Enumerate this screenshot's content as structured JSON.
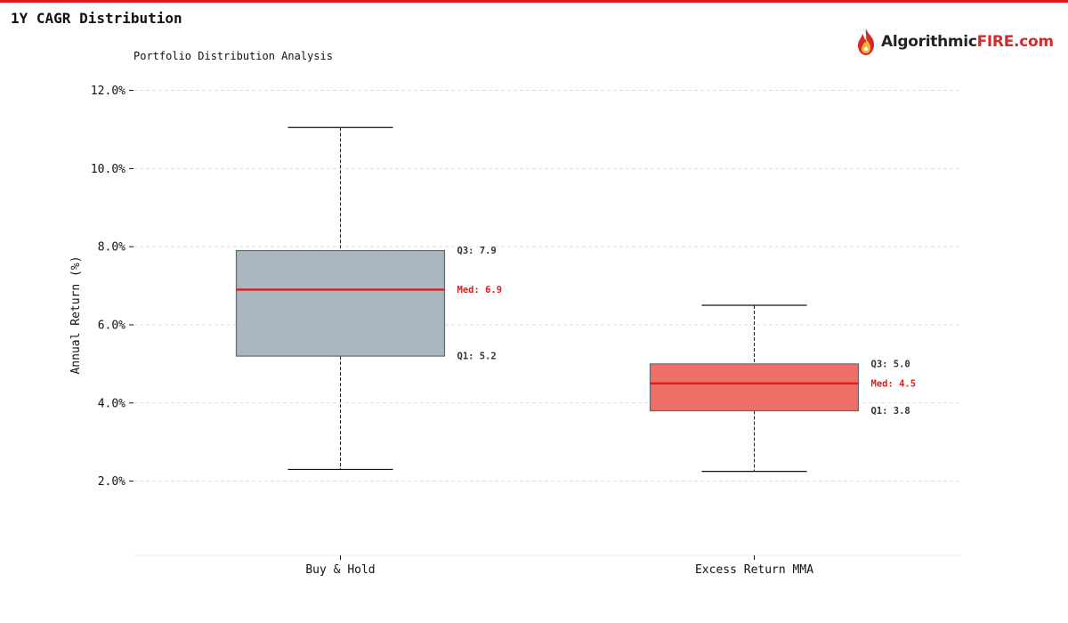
{
  "page": {
    "title": "1Y CAGR Distribution",
    "top_bar_color": "#e01b1b"
  },
  "logo": {
    "text_main": "Algorithmic",
    "text_accent": "FIRE.com",
    "icon": "flame-icon",
    "accent_color": "#d42a2a"
  },
  "chart_data": {
    "type": "box",
    "title": "Portfolio Distribution Analysis",
    "ylabel": "Annual Return (%)",
    "xlabel": "",
    "ylim": [
      0.1,
      12.4
    ],
    "yticks": [
      2.0,
      4.0,
      6.0,
      8.0,
      10.0,
      12.0
    ],
    "ytick_labels": [
      "2.0%",
      "4.0%",
      "6.0%",
      "8.0%",
      "10.0%",
      "12.0%"
    ],
    "grid": true,
    "categories": [
      "Buy & Hold",
      "Excess Return MMA"
    ],
    "series": [
      {
        "category": "Buy & Hold",
        "whisker_low": 2.3,
        "q1": 5.2,
        "median": 6.9,
        "q3": 7.9,
        "whisker_high": 11.05,
        "fill": "#a9b8bf",
        "label_q3": "Q3: 7.9",
        "label_median": "Med: 6.9",
        "label_q1": "Q1: 5.2"
      },
      {
        "category": "Excess Return MMA",
        "whisker_low": 2.25,
        "q1": 3.8,
        "median": 4.5,
        "q3": 5.0,
        "whisker_high": 6.5,
        "fill": "#ee6f68",
        "label_q3": "Q3: 5.0",
        "label_median": "Med: 4.5",
        "label_q1": "Q1: 3.8"
      }
    ],
    "median_color": "#e01b1b",
    "grid_color": "#dddddd"
  }
}
